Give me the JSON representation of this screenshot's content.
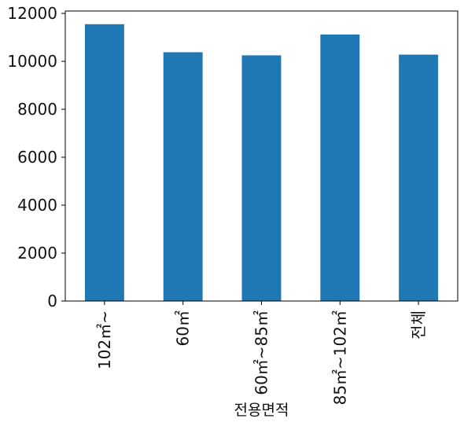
{
  "chart_data": {
    "type": "bar",
    "categories": [
      "102㎡~",
      "60㎡",
      "60㎡~85㎡",
      "85㎡~102㎡",
      "전체"
    ],
    "values": [
      11550,
      10380,
      10250,
      11120,
      10280
    ],
    "title": "",
    "xlabel": "전용면적",
    "ylabel": "",
    "ylim": [
      0,
      12100
    ],
    "yticks": [
      0,
      2000,
      4000,
      6000,
      8000,
      10000,
      12000
    ],
    "grid": false,
    "bar_color": "#1f77b4"
  }
}
